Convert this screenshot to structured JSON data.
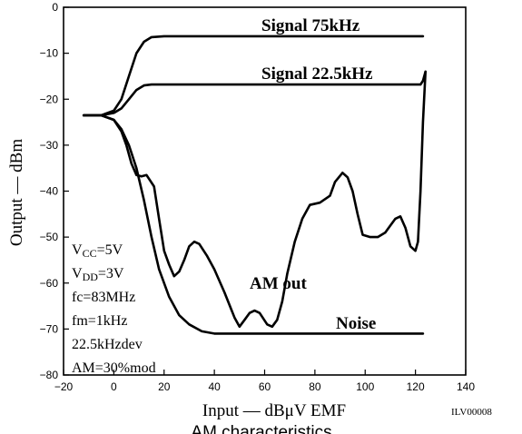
{
  "chart_data": {
    "type": "line",
    "xlabel": "Input — dBμV EMF",
    "ylabel": "Output — dBm",
    "caption": "AM characteristics",
    "code": "ILV00008",
    "xlim": [
      -20,
      140
    ],
    "ylim": [
      -80,
      0
    ],
    "xticks": [
      -20,
      0,
      20,
      40,
      60,
      80,
      100,
      120,
      140
    ],
    "yticks": [
      0,
      -10,
      -20,
      -30,
      -40,
      -50,
      -60,
      -70,
      -80
    ],
    "grid": false,
    "series": [
      {
        "name": "Signal 75kHz",
        "x": [
          -12,
          -5,
          0,
          3,
          6,
          9,
          12,
          15,
          20,
          40,
          80,
          123
        ],
        "y": [
          -23.5,
          -23.5,
          -22.5,
          -20,
          -15,
          -10,
          -7.5,
          -6.5,
          -6.3,
          -6.3,
          -6.3,
          -6.3
        ]
      },
      {
        "name": "Signal 22.5kHz",
        "x": [
          -12,
          -5,
          0,
          3,
          6,
          9,
          12,
          15,
          20,
          40,
          80,
          122,
          123,
          124
        ],
        "y": [
          -23.5,
          -23.5,
          -23,
          -22,
          -20,
          -18,
          -17,
          -16.8,
          -16.8,
          -16.8,
          -16.8,
          -16.8,
          -16,
          -14
        ]
      },
      {
        "name": "AM out",
        "x": [
          -12,
          -5,
          0,
          3,
          5,
          7,
          9,
          11,
          13,
          16,
          18,
          20,
          22,
          24,
          26,
          28,
          30,
          32,
          34,
          37,
          40,
          44,
          48,
          50,
          52,
          54,
          56,
          58,
          61,
          63,
          65,
          67,
          69,
          72,
          75,
          78,
          82,
          86,
          88,
          91,
          93,
          95,
          97,
          99,
          102,
          105,
          108,
          110,
          112,
          114,
          116,
          118,
          120,
          121,
          122,
          123,
          124
        ],
        "y": [
          -23.5,
          -23.5,
          -24.5,
          -27,
          -30,
          -34,
          -36.5,
          -36.8,
          -36.5,
          -39,
          -46,
          -53,
          -56,
          -58.5,
          -57.5,
          -55,
          -52,
          -51,
          -51.5,
          -54,
          -57,
          -62,
          -67.5,
          -69.5,
          -68,
          -66.5,
          -66,
          -66.5,
          -69,
          -69.5,
          -68,
          -64,
          -58,
          -51,
          -46,
          -43,
          -42.5,
          -41,
          -38,
          -36,
          -37,
          -40,
          -45,
          -49.5,
          -50,
          -50,
          -49,
          -47.5,
          -46,
          -45.5,
          -48,
          -52,
          -53,
          -51,
          -40,
          -25,
          -14
        ]
      },
      {
        "name": "Noise",
        "x": [
          -12,
          -5,
          0,
          3,
          6,
          9,
          12,
          15,
          18,
          22,
          26,
          30,
          35,
          40,
          50,
          60,
          80,
          100,
          123
        ],
        "y": [
          -23.5,
          -23.5,
          -24.5,
          -26.5,
          -30,
          -35,
          -42,
          -50,
          -57,
          -63,
          -67,
          -69,
          -70.5,
          -71,
          -71,
          -71,
          -71,
          -71,
          -71
        ]
      }
    ],
    "conditions": [
      "V_CC=5V",
      "V_DD=3V",
      "fc=83MHz",
      "fm=1kHz",
      "22.5kHzdev",
      "AM=30%mod"
    ]
  }
}
